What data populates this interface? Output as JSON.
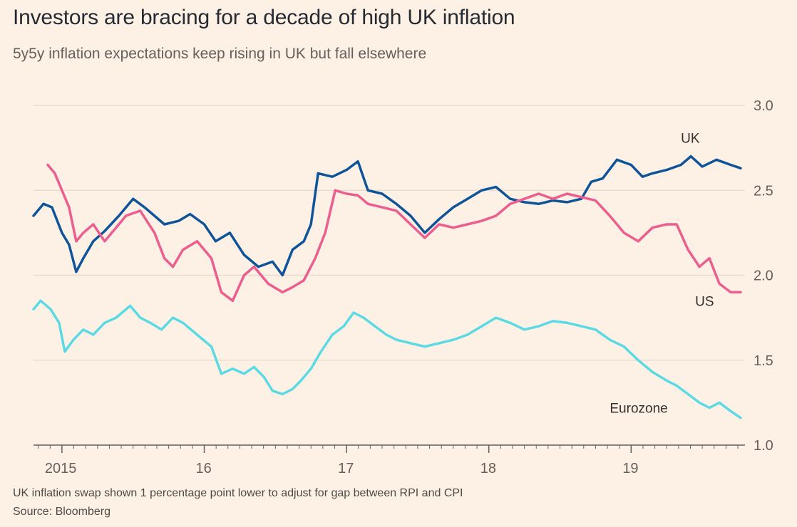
{
  "chart_data": {
    "type": "line",
    "title": "Investors are bracing for a decade of high UK inflation",
    "subtitle": "5y5y inflation expectations keep rising in UK but fall elsewhere",
    "xlabel": "",
    "ylabel": "",
    "xlim": [
      2014.8,
      2019.8
    ],
    "ylim": [
      1.0,
      3.0
    ],
    "yticks": [
      {
        "value": 1.0,
        "label": "1.0"
      },
      {
        "value": 1.5,
        "label": "1.5"
      },
      {
        "value": 2.0,
        "label": "2.0"
      },
      {
        "value": 2.5,
        "label": "2.5"
      },
      {
        "value": 3.0,
        "label": "3.0"
      }
    ],
    "xticks": [
      {
        "value": 2015,
        "label": "2015"
      },
      {
        "value": 2016,
        "label": "16"
      },
      {
        "value": 2017,
        "label": "17"
      },
      {
        "value": 2018,
        "label": "18"
      },
      {
        "value": 2019,
        "label": "19"
      }
    ],
    "grid": true,
    "series": [
      {
        "name": "UK",
        "color": "#0f5499",
        "label_position": [
          2019.35,
          2.78
        ],
        "points": [
          [
            2014.8,
            2.35
          ],
          [
            2014.87,
            2.42
          ],
          [
            2014.93,
            2.4
          ],
          [
            2015.0,
            2.25
          ],
          [
            2015.05,
            2.18
          ],
          [
            2015.1,
            2.02
          ],
          [
            2015.15,
            2.1
          ],
          [
            2015.22,
            2.2
          ],
          [
            2015.3,
            2.26
          ],
          [
            2015.4,
            2.35
          ],
          [
            2015.5,
            2.45
          ],
          [
            2015.58,
            2.4
          ],
          [
            2015.65,
            2.35
          ],
          [
            2015.72,
            2.3
          ],
          [
            2015.82,
            2.32
          ],
          [
            2015.9,
            2.36
          ],
          [
            2016.0,
            2.3
          ],
          [
            2016.08,
            2.2
          ],
          [
            2016.18,
            2.25
          ],
          [
            2016.28,
            2.12
          ],
          [
            2016.38,
            2.05
          ],
          [
            2016.48,
            2.08
          ],
          [
            2016.55,
            2.0
          ],
          [
            2016.62,
            2.15
          ],
          [
            2016.7,
            2.2
          ],
          [
            2016.75,
            2.3
          ],
          [
            2016.8,
            2.6
          ],
          [
            2016.9,
            2.58
          ],
          [
            2017.0,
            2.62
          ],
          [
            2017.08,
            2.67
          ],
          [
            2017.15,
            2.5
          ],
          [
            2017.25,
            2.48
          ],
          [
            2017.35,
            2.42
          ],
          [
            2017.45,
            2.35
          ],
          [
            2017.55,
            2.25
          ],
          [
            2017.65,
            2.33
          ],
          [
            2017.75,
            2.4
          ],
          [
            2017.85,
            2.45
          ],
          [
            2017.95,
            2.5
          ],
          [
            2018.05,
            2.52
          ],
          [
            2018.15,
            2.45
          ],
          [
            2018.25,
            2.43
          ],
          [
            2018.35,
            2.42
          ],
          [
            2018.45,
            2.44
          ],
          [
            2018.55,
            2.43
          ],
          [
            2018.65,
            2.45
          ],
          [
            2018.72,
            2.55
          ],
          [
            2018.8,
            2.57
          ],
          [
            2018.9,
            2.68
          ],
          [
            2019.0,
            2.65
          ],
          [
            2019.08,
            2.58
          ],
          [
            2019.15,
            2.6
          ],
          [
            2019.25,
            2.62
          ],
          [
            2019.35,
            2.65
          ],
          [
            2019.42,
            2.7
          ],
          [
            2019.5,
            2.64
          ],
          [
            2019.6,
            2.68
          ],
          [
            2019.7,
            2.65
          ],
          [
            2019.77,
            2.63
          ]
        ]
      },
      {
        "name": "US",
        "color": "#eb5e8d",
        "label_position": [
          2019.45,
          1.82
        ],
        "points": [
          [
            2014.9,
            2.65
          ],
          [
            2014.95,
            2.6
          ],
          [
            2015.0,
            2.5
          ],
          [
            2015.05,
            2.4
          ],
          [
            2015.1,
            2.2
          ],
          [
            2015.15,
            2.25
          ],
          [
            2015.22,
            2.3
          ],
          [
            2015.3,
            2.2
          ],
          [
            2015.38,
            2.28
          ],
          [
            2015.45,
            2.35
          ],
          [
            2015.55,
            2.38
          ],
          [
            2015.65,
            2.25
          ],
          [
            2015.72,
            2.1
          ],
          [
            2015.78,
            2.05
          ],
          [
            2015.85,
            2.15
          ],
          [
            2015.95,
            2.2
          ],
          [
            2016.05,
            2.1
          ],
          [
            2016.12,
            1.9
          ],
          [
            2016.2,
            1.85
          ],
          [
            2016.28,
            2.0
          ],
          [
            2016.35,
            2.05
          ],
          [
            2016.45,
            1.95
          ],
          [
            2016.55,
            1.9
          ],
          [
            2016.62,
            1.93
          ],
          [
            2016.7,
            1.97
          ],
          [
            2016.78,
            2.1
          ],
          [
            2016.85,
            2.25
          ],
          [
            2016.92,
            2.5
          ],
          [
            2017.0,
            2.48
          ],
          [
            2017.08,
            2.47
          ],
          [
            2017.15,
            2.42
          ],
          [
            2017.25,
            2.4
          ],
          [
            2017.35,
            2.38
          ],
          [
            2017.45,
            2.3
          ],
          [
            2017.55,
            2.22
          ],
          [
            2017.65,
            2.3
          ],
          [
            2017.75,
            2.28
          ],
          [
            2017.85,
            2.3
          ],
          [
            2017.95,
            2.32
          ],
          [
            2018.05,
            2.35
          ],
          [
            2018.15,
            2.42
          ],
          [
            2018.25,
            2.45
          ],
          [
            2018.35,
            2.48
          ],
          [
            2018.45,
            2.45
          ],
          [
            2018.55,
            2.48
          ],
          [
            2018.65,
            2.46
          ],
          [
            2018.75,
            2.44
          ],
          [
            2018.85,
            2.35
          ],
          [
            2018.95,
            2.25
          ],
          [
            2019.05,
            2.2
          ],
          [
            2019.15,
            2.28
          ],
          [
            2019.25,
            2.3
          ],
          [
            2019.32,
            2.3
          ],
          [
            2019.4,
            2.15
          ],
          [
            2019.48,
            2.05
          ],
          [
            2019.55,
            2.1
          ],
          [
            2019.62,
            1.95
          ],
          [
            2019.7,
            1.9
          ],
          [
            2019.77,
            1.9
          ]
        ]
      },
      {
        "name": "Eurozone",
        "color": "#5bdae4",
        "label_position": [
          2018.85,
          1.19
        ],
        "points": [
          [
            2014.8,
            1.8
          ],
          [
            2014.85,
            1.85
          ],
          [
            2014.92,
            1.8
          ],
          [
            2014.98,
            1.72
          ],
          [
            2015.02,
            1.55
          ],
          [
            2015.08,
            1.62
          ],
          [
            2015.15,
            1.68
          ],
          [
            2015.22,
            1.65
          ],
          [
            2015.3,
            1.72
          ],
          [
            2015.38,
            1.75
          ],
          [
            2015.48,
            1.82
          ],
          [
            2015.55,
            1.75
          ],
          [
            2015.62,
            1.72
          ],
          [
            2015.7,
            1.68
          ],
          [
            2015.78,
            1.75
          ],
          [
            2015.85,
            1.72
          ],
          [
            2015.95,
            1.65
          ],
          [
            2016.05,
            1.58
          ],
          [
            2016.12,
            1.42
          ],
          [
            2016.2,
            1.45
          ],
          [
            2016.28,
            1.42
          ],
          [
            2016.35,
            1.46
          ],
          [
            2016.42,
            1.4
          ],
          [
            2016.48,
            1.32
          ],
          [
            2016.55,
            1.3
          ],
          [
            2016.62,
            1.33
          ],
          [
            2016.68,
            1.38
          ],
          [
            2016.75,
            1.45
          ],
          [
            2016.82,
            1.55
          ],
          [
            2016.9,
            1.65
          ],
          [
            2016.98,
            1.7
          ],
          [
            2017.05,
            1.78
          ],
          [
            2017.12,
            1.75
          ],
          [
            2017.2,
            1.7
          ],
          [
            2017.28,
            1.65
          ],
          [
            2017.35,
            1.62
          ],
          [
            2017.45,
            1.6
          ],
          [
            2017.55,
            1.58
          ],
          [
            2017.65,
            1.6
          ],
          [
            2017.75,
            1.62
          ],
          [
            2017.85,
            1.65
          ],
          [
            2017.95,
            1.7
          ],
          [
            2018.05,
            1.75
          ],
          [
            2018.15,
            1.72
          ],
          [
            2018.25,
            1.68
          ],
          [
            2018.35,
            1.7
          ],
          [
            2018.45,
            1.73
          ],
          [
            2018.55,
            1.72
          ],
          [
            2018.65,
            1.7
          ],
          [
            2018.75,
            1.68
          ],
          [
            2018.85,
            1.62
          ],
          [
            2018.95,
            1.58
          ],
          [
            2019.05,
            1.5
          ],
          [
            2019.15,
            1.43
          ],
          [
            2019.25,
            1.38
          ],
          [
            2019.32,
            1.35
          ],
          [
            2019.4,
            1.3
          ],
          [
            2019.48,
            1.25
          ],
          [
            2019.55,
            1.22
          ],
          [
            2019.62,
            1.25
          ],
          [
            2019.7,
            1.2
          ],
          [
            2019.77,
            1.16
          ]
        ]
      }
    ],
    "footnotes": {
      "note": "UK inflation swap shown 1 percentage point lower to adjust for gap between RPI and CPI",
      "source": "Source: Bloomberg"
    }
  }
}
